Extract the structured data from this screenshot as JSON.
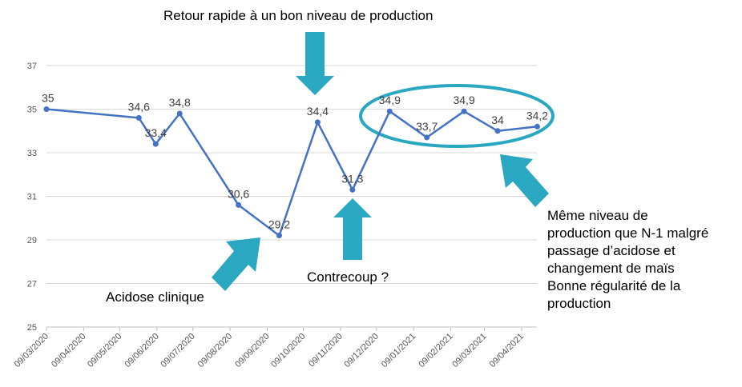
{
  "chart_data": {
    "type": "line",
    "x": [
      "09/03/2020",
      "09/04/2020",
      "09/05/2020",
      "09/06/2020",
      "09/07/2020",
      "09/08/2020",
      "09/09/2020",
      "09/10/2020",
      "09/11/2020",
      "09/12/2020",
      "09/01/2021",
      "09/02/2021",
      "09/03/2021",
      "09/04/2021"
    ],
    "points": [
      {
        "date": "2020-03-09",
        "value": 35,
        "label": "35"
      },
      {
        "date": "2020-05-25",
        "value": 34.6,
        "label": "34,6"
      },
      {
        "date": "2020-06-08",
        "value": 33.4,
        "label": "33,4"
      },
      {
        "date": "2020-06-28",
        "value": 34.8,
        "label": "34,8"
      },
      {
        "date": "2020-08-16",
        "value": 30.6,
        "label": "30,6"
      },
      {
        "date": "2020-09-19",
        "value": 29.2,
        "label": "29,2"
      },
      {
        "date": "2020-10-21",
        "value": 34.4,
        "label": "34,4"
      },
      {
        "date": "2020-11-19",
        "value": 31.3,
        "label": "31,3"
      },
      {
        "date": "2020-12-20",
        "value": 34.9,
        "label": "34,9"
      },
      {
        "date": "2021-01-20",
        "value": 33.7,
        "label": "33,7"
      },
      {
        "date": "2021-02-20",
        "value": 34.9,
        "label": "34,9"
      },
      {
        "date": "2021-03-20",
        "value": 34,
        "label": "34"
      },
      {
        "date": "2021-04-22",
        "value": 34.2,
        "label": "34,2"
      }
    ],
    "yticks": [
      25,
      27,
      29,
      31,
      33,
      35,
      37
    ],
    "ylim": [
      25,
      37
    ],
    "grid": true,
    "line_color": "#4472c4",
    "annotation_color": "#2aa7c1"
  },
  "annotations": {
    "top": "Retour rapide à un bon niveau de production",
    "acidose": "Acidose clinique",
    "contrecoup": "Contrecoup ?",
    "right": [
      "Même niveau de",
      "production que N-1 malgré",
      "passage d’acidose et",
      "changement de maïs",
      "Bonne régularité de la",
      "production"
    ]
  }
}
